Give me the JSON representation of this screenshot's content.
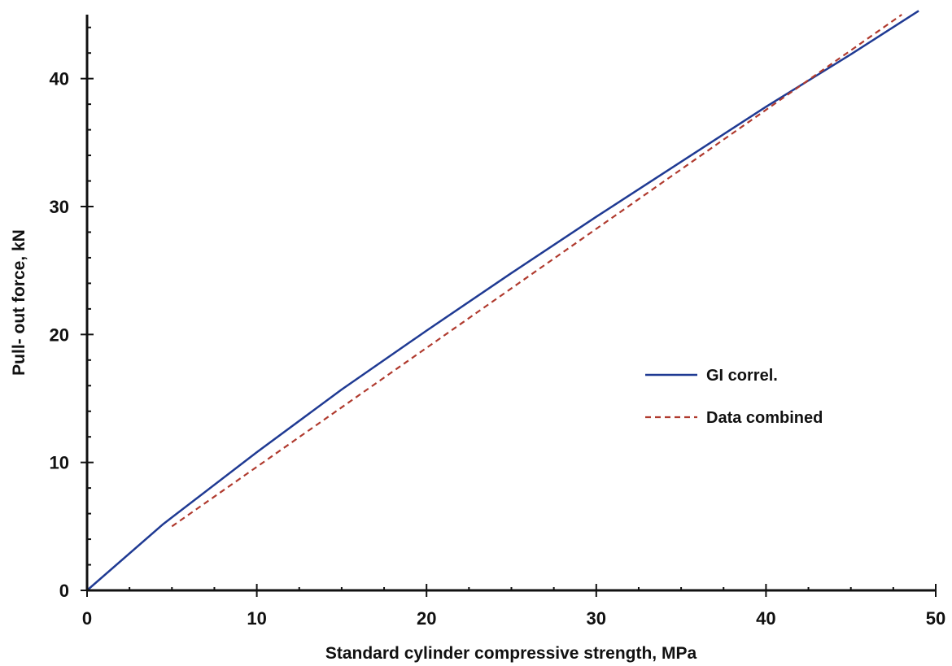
{
  "chart_data": {
    "type": "line",
    "title": "",
    "xlabel": "Standard cylinder compressive strength, MPa",
    "ylabel": "Pull- out force, kN",
    "xlim": [
      0,
      50
    ],
    "ylim": [
      0,
      45
    ],
    "x_ticks": [
      "0",
      "10",
      "20",
      "30",
      "40",
      "50"
    ],
    "y_ticks": [
      "0",
      "10",
      "20",
      "30",
      "40"
    ],
    "grid": false,
    "legend_position": "right-middle",
    "series": [
      {
        "name": "GI correl.",
        "color": "#1f3a93",
        "style": "solid",
        "x": [
          0,
          4.5,
          10,
          15,
          20,
          25,
          30,
          35,
          40,
          45,
          49
        ],
        "y": [
          0,
          5.2,
          10.8,
          15.7,
          20.3,
          24.8,
          29.2,
          33.5,
          37.8,
          41.9,
          45.3
        ]
      },
      {
        "name": "Data combined",
        "color": "#b03a2e",
        "style": "dashed",
        "x": [
          5,
          48
        ],
        "y": [
          5,
          45
        ]
      }
    ]
  }
}
